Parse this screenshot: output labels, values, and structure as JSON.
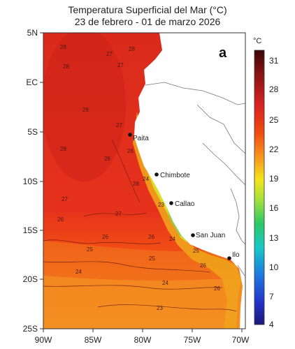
{
  "title": {
    "line1": "Temperatura Superficial del Mar (°C)",
    "line2": "23 de febrero - 01 de marzo 2026"
  },
  "panel_label": "a",
  "lat_labels": [
    "5N",
    "EC",
    "5S",
    "10S",
    "15S",
    "20S",
    "25S"
  ],
  "lon_labels": [
    "90W",
    "85W",
    "80W",
    "75W",
    "70W"
  ],
  "colorbar": {
    "unit": "°C",
    "ticks": [
      "31",
      "28",
      "25",
      "22",
      "19",
      "16",
      "13",
      "10",
      "7",
      "4"
    ],
    "colors": [
      "#3a0606",
      "#8b1414",
      "#d82222",
      "#f04a10",
      "#f7a020",
      "#f4e41a",
      "#9ee040",
      "#2ec864",
      "#18c8c8",
      "#1e78e0",
      "#2432c8",
      "#1c1878"
    ]
  },
  "cities": [
    "Paita",
    "Chimbote",
    "Callao",
    "San Juan",
    "Ilo"
  ],
  "isotherms": [
    "28",
    "27",
    "28",
    "28",
    "27",
    "27",
    "26",
    "28",
    "28",
    "26",
    "28",
    "23",
    "24",
    "27",
    "27",
    "26",
    "26",
    "26",
    "25",
    "25",
    "24",
    "24",
    "25",
    "26",
    "24",
    "26",
    "23"
  ]
}
